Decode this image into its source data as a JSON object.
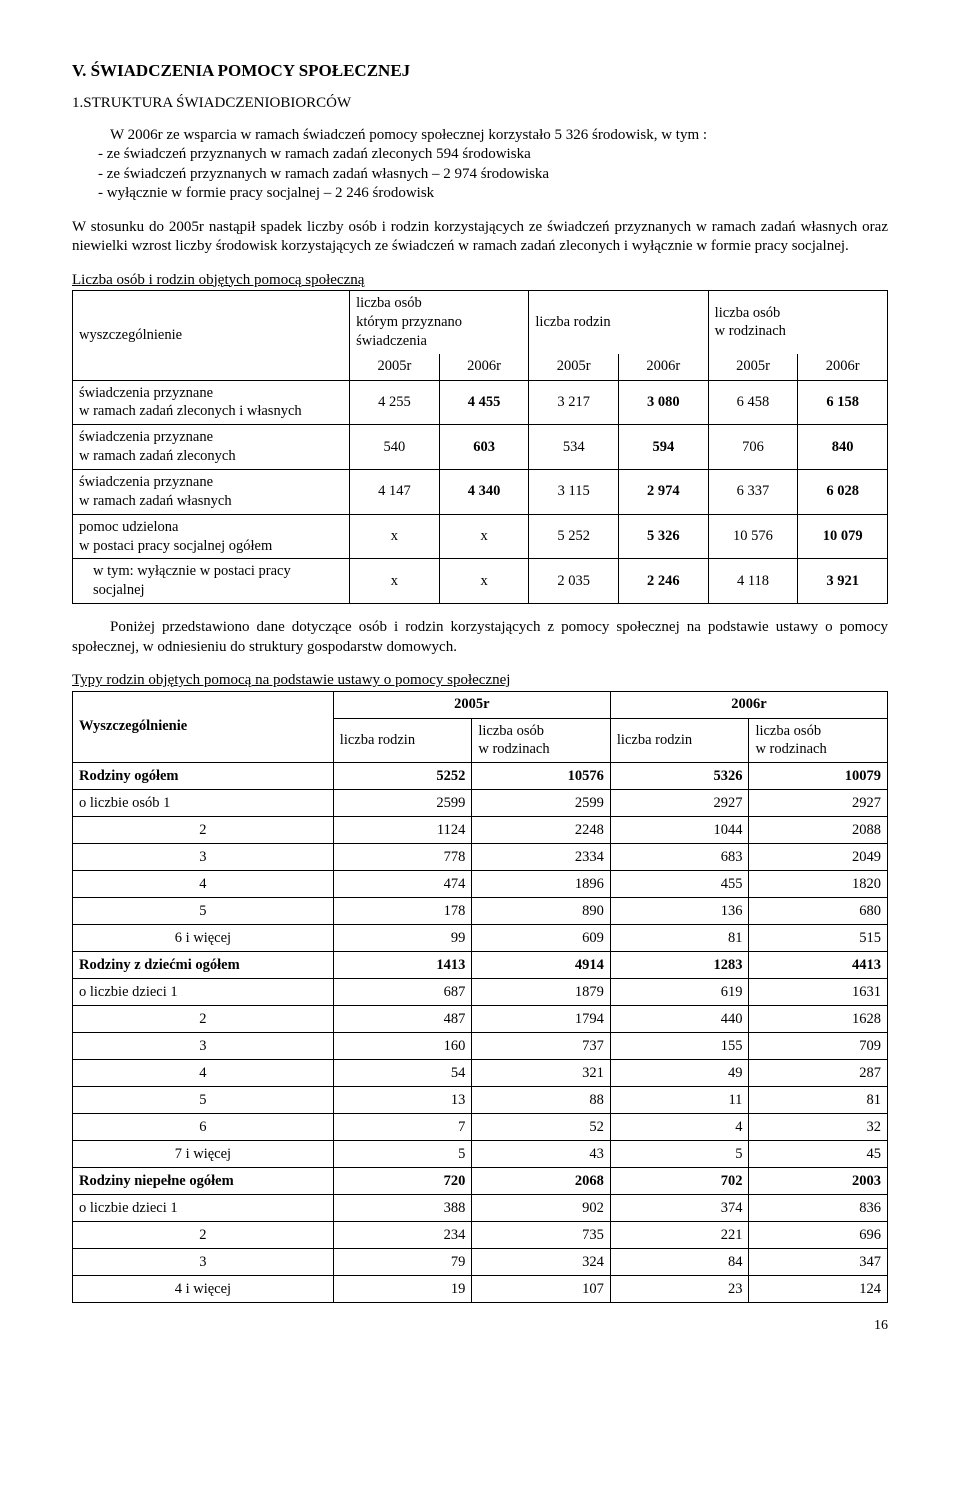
{
  "section_title": "V. ŚWIADCZENIA POMOCY SPOŁECZNEJ",
  "sub_title": "1.STRUKTURA ŚWIADCZENIOBIORCÓW",
  "intro_1": "W 2006r ze wsparcia w ramach świadczeń pomocy społecznej korzystało 5 326 środowisk, w tym :",
  "intro_bullet1": "- ze świadczeń przyznanych w ramach zadań zleconych 594 środowiska",
  "intro_bullet2": "- ze świadczeń przyznanych w ramach zadań własnych – 2 974 środowiska",
  "intro_bullet3": "- wyłącznie w formie pracy socjalnej – 2 246 środowisk",
  "intro_2": "W stosunku do 2005r nastąpił spadek liczby osób i rodzin korzystających ze świadczeń przyznanych w ramach zadań własnych oraz niewielki wzrost liczby środowisk korzystających ze świadczeń w ramach zadań zleconych i wyłącznie w formie pracy socjalnej.",
  "table1": {
    "caption": "Liczba osób i rodzin  objętych pomocą społeczną",
    "col_wys": "wyszczególnienie",
    "col_osoby": "liczba osób którym przyznano świadczenia",
    "col_osoby_l1": "liczba osób",
    "col_osoby_l2": "którym przyznano",
    "col_osoby_l3": "świadczenia",
    "col_rodzin": "liczba rodzin",
    "col_wrodz": "liczba osób",
    "col_wrodz2": "w rodzinach",
    "yr05": "2005r",
    "yr06": "2006r",
    "rows": [
      {
        "label_a": "świadczenia przyznane",
        "label_b": " w ramach zadań  zleconych i własnych",
        "v": [
          "4 255",
          "4 455",
          "3 217",
          "3 080",
          "6 458",
          "6 158"
        ],
        "bold_idx": [
          1,
          3,
          5
        ]
      },
      {
        "label_a": "świadczenia przyznane",
        "label_b": " w ramach zadań zleconych",
        "v": [
          "540",
          "603",
          "534",
          "594",
          "706",
          "840"
        ],
        "bold_idx": [
          1,
          3,
          5
        ]
      },
      {
        "label_a": "świadczenia przyznane",
        "label_b": "w ramach zadań własnych",
        "v": [
          "4 147",
          "4 340",
          "3 115",
          "2 974",
          "6 337",
          "6 028"
        ],
        "bold_idx": [
          1,
          3,
          5
        ]
      },
      {
        "label_a": "pomoc udzielona",
        "label_b": "w postaci pracy socjalnej ogółem",
        "v": [
          "x",
          "x",
          "5 252",
          "5 326",
          "10 576",
          "10 079"
        ],
        "bold_idx": [
          3,
          5
        ]
      }
    ],
    "lastrow_label": "w tym: wyłącznie w postaci pracy socjalnej",
    "lastrow_v": [
      "x",
      "x",
      "2 035",
      "2 246",
      "4 118",
      "3 921"
    ],
    "lastrow_bold_idx": [
      3,
      5
    ]
  },
  "mid_para": "Poniżej przedstawiono dane dotyczące osób i rodzin korzystających z pomocy społecznej na podstawie ustawy o pomocy społecznej, w odniesieniu do struktury gospodarstw domowych.",
  "table2": {
    "caption": "Typy rodzin objętych pomocą na podstawie ustawy o pomocy społecznej",
    "col_wys": "Wyszczególnienie",
    "yr05": "2005r",
    "yr06": "2006r",
    "sub_rodzin": "liczba rodzin",
    "sub_osob1": "liczba osób",
    "sub_osob2": "w rodzinach",
    "rows": [
      {
        "l": "Rodziny ogółem",
        "bold": true,
        "v": [
          "5252",
          "10576",
          "5326",
          "10079"
        ]
      },
      {
        "l": "o liczbie osób            1",
        "v": [
          "2599",
          "2599",
          "2927",
          "2927"
        ]
      },
      {
        "l": "2",
        "align": "center",
        "v": [
          "1124",
          "2248",
          "1044",
          "2088"
        ]
      },
      {
        "l": "3",
        "align": "center",
        "v": [
          "778",
          "2334",
          "683",
          "2049"
        ]
      },
      {
        "l": "4",
        "align": "center",
        "v": [
          "474",
          "1896",
          "455",
          "1820"
        ]
      },
      {
        "l": "5",
        "align": "center",
        "v": [
          "178",
          "890",
          "136",
          "680"
        ]
      },
      {
        "l": "6 i więcej",
        "align": "center",
        "v": [
          "99",
          "609",
          "81",
          "515"
        ]
      },
      {
        "l": "Rodziny z dziećmi   ogółem",
        "bold": true,
        "v": [
          "1413",
          "4914",
          "1283",
          "4413"
        ]
      },
      {
        "l": "o  liczbie dzieci          1",
        "v": [
          "687",
          "1879",
          "619",
          "1631"
        ]
      },
      {
        "l": "2",
        "align": "center",
        "v": [
          "487",
          "1794",
          "440",
          "1628"
        ]
      },
      {
        "l": "3",
        "align": "center",
        "v": [
          "160",
          "737",
          "155",
          "709"
        ]
      },
      {
        "l": "4",
        "align": "center",
        "v": [
          "54",
          "321",
          "49",
          "287"
        ]
      },
      {
        "l": "5",
        "align": "center",
        "v": [
          "13",
          "88",
          "11",
          "81"
        ]
      },
      {
        "l": "6",
        "align": "center",
        "v": [
          "7",
          "52",
          "4",
          "32"
        ]
      },
      {
        "l": "7 i więcej",
        "align": "center",
        "v": [
          "5",
          "43",
          "5",
          "45"
        ]
      },
      {
        "l": "Rodziny niepełne ogółem",
        "bold": true,
        "v": [
          "720",
          "2068",
          "702",
          "2003"
        ]
      },
      {
        "l": "o liczbie dzieci           1",
        "v": [
          "388",
          "902",
          "374",
          "836"
        ]
      },
      {
        "l": "2",
        "align": "center",
        "v": [
          "234",
          "735",
          "221",
          "696"
        ]
      },
      {
        "l": "3",
        "align": "center",
        "v": [
          "79",
          "324",
          "84",
          "347"
        ]
      },
      {
        "l": "4 i więcej",
        "align": "center",
        "v": [
          "19",
          "107",
          "23",
          "124"
        ]
      }
    ]
  },
  "page_num": "16"
}
